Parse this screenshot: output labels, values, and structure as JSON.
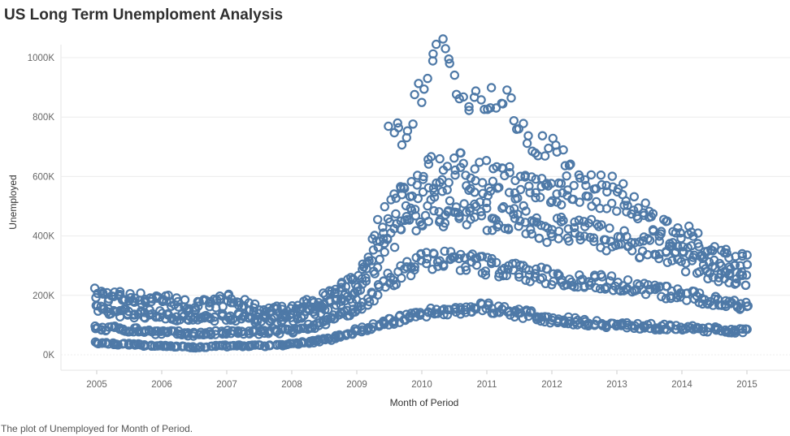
{
  "title": "US Long Term Unemploment Analysis",
  "caption": "The plot of Unemployed for Month of Period.",
  "colors": {
    "marker": "#4e79a7",
    "grid": "#ececec"
  },
  "chart_data": {
    "type": "scatter",
    "xlabel": "Month of Period",
    "ylabel": "Unemployed",
    "xlim": [
      2004.6,
      2015.65
    ],
    "ylim": [
      0,
      1000000
    ],
    "x_ticks": [
      "2005",
      "2006",
      "2007",
      "2008",
      "2009",
      "2010",
      "2011",
      "2012",
      "2013",
      "2014",
      "2015"
    ],
    "y_ticks": [
      {
        "value": 0,
        "label": "0K"
      },
      {
        "value": 200000,
        "label": "200K"
      },
      {
        "value": 400000,
        "label": "400K"
      },
      {
        "value": 600000,
        "label": "600K"
      },
      {
        "value": 800000,
        "label": "800K"
      },
      {
        "value": 1000000,
        "label": "1000K"
      }
    ],
    "marker": "open-circle",
    "grid": true,
    "series": [
      {
        "name": "",
        "x": [
          2005,
          2005.5,
          2006,
          2006.5,
          2007,
          2007.5,
          2008,
          2008.5,
          2009,
          2009.5,
          2010,
          2010.5,
          2011,
          2011.5,
          2012,
          2012.5,
          2013,
          2013.5,
          2014,
          2014.5,
          2015
        ],
        "y": [
          205000,
          190000,
          190000,
          160000,
          185000,
          150000,
          150000,
          190000,
          250000,
          500000,
          600000,
          620000,
          600000,
          560000,
          560000,
          560000,
          540000,
          450000,
          400000,
          340000,
          310000
        ]
      },
      {
        "name": "",
        "x": [
          2005,
          2005.5,
          2006,
          2006.5,
          2007,
          2007.5,
          2008,
          2008.5,
          2009,
          2009.5,
          2010,
          2010.5,
          2011,
          2011.5,
          2012,
          2012.5,
          2013,
          2013.5,
          2014,
          2014.5,
          2015
        ],
        "y": [
          150000,
          140000,
          135000,
          120000,
          130000,
          120000,
          125000,
          160000,
          200000,
          390000,
          480000,
          480000,
          470000,
          440000,
          420000,
          420000,
          380000,
          360000,
          320000,
          280000,
          250000
        ]
      },
      {
        "name": "",
        "x": [
          2005,
          2005.5,
          2006,
          2006.5,
          2007,
          2007.5,
          2008,
          2008.5,
          2009,
          2009.5,
          2010,
          2010.5,
          2011,
          2011.5,
          2012,
          2012.5,
          2013,
          2013.5,
          2014,
          2014.5,
          2015
        ],
        "y": [
          90000,
          85000,
          75000,
          70000,
          75000,
          75000,
          80000,
          110000,
          150000,
          250000,
          320000,
          320000,
          300000,
          280000,
          260000,
          250000,
          240000,
          220000,
          200000,
          180000,
          170000
        ]
      },
      {
        "name": "",
        "x": [
          2005,
          2005.5,
          2006,
          2006.5,
          2007,
          2007.5,
          2008,
          2008.5,
          2009,
          2009.5,
          2010,
          2010.5,
          2011,
          2011.5,
          2012,
          2012.5,
          2013,
          2013.5,
          2014,
          2014.5,
          2015
        ],
        "y": [
          40000,
          35000,
          30000,
          25000,
          30000,
          30000,
          35000,
          50000,
          80000,
          110000,
          140000,
          150000,
          160000,
          140000,
          120000,
          110000,
          100000,
          95000,
          90000,
          85000,
          80000
        ]
      },
      {
        "name": "",
        "x": [
          2009.5,
          2009.8,
          2010,
          2010.2,
          2010.4,
          2010.7,
          2011,
          2011.3,
          2011.6,
          2012,
          2012.3
        ],
        "y": [
          730000,
          760000,
          900000,
          1000000,
          1010000,
          850000,
          870000,
          850000,
          720000,
          700000,
          640000
        ]
      }
    ]
  }
}
